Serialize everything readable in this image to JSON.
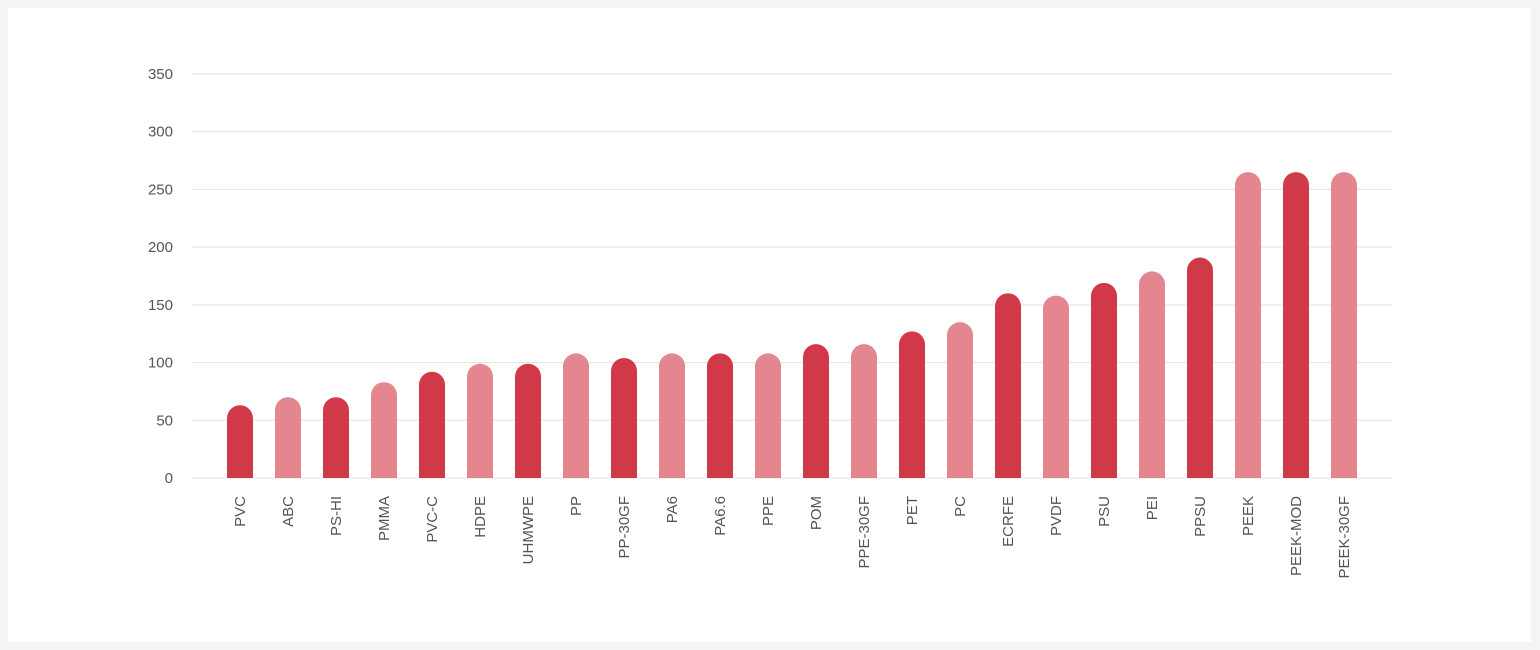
{
  "chart_data": {
    "type": "bar",
    "title": "",
    "xlabel": "",
    "ylabel": "",
    "ylim": [
      0,
      350
    ],
    "yticks": [
      0,
      50,
      100,
      150,
      200,
      250,
      300,
      350
    ],
    "grid": true,
    "legend": "none",
    "colors": {
      "dark": "#d03a48",
      "light": "#e38690",
      "grid": "#e2e2e2",
      "text": "#555555"
    },
    "categories": [
      "PVC",
      "ABC",
      "PS-HI",
      "PMMA",
      "PVC-C",
      "HDPE",
      "UHMWPE",
      "PP",
      "PP-30GF",
      "PA6",
      "PA6.6",
      "PPE",
      "POM",
      "PPE-30GF",
      "PET",
      "PC",
      "ECRFE",
      "PVDF",
      "PSU",
      "PEI",
      "PPSU",
      "PEEK",
      "PEEK-MOD",
      "PEEK-30GF"
    ],
    "values": [
      63,
      70,
      70,
      83,
      92,
      99,
      99,
      108,
      104,
      108,
      108,
      108,
      116,
      116,
      127,
      135,
      160,
      158,
      169,
      179,
      191,
      265,
      265,
      265
    ],
    "shades": [
      "dark",
      "light",
      "dark",
      "light",
      "dark",
      "light",
      "dark",
      "light",
      "dark",
      "light",
      "dark",
      "light",
      "dark",
      "light",
      "dark",
      "light",
      "dark",
      "light",
      "dark",
      "light",
      "dark",
      "light",
      "dark",
      "light"
    ]
  }
}
